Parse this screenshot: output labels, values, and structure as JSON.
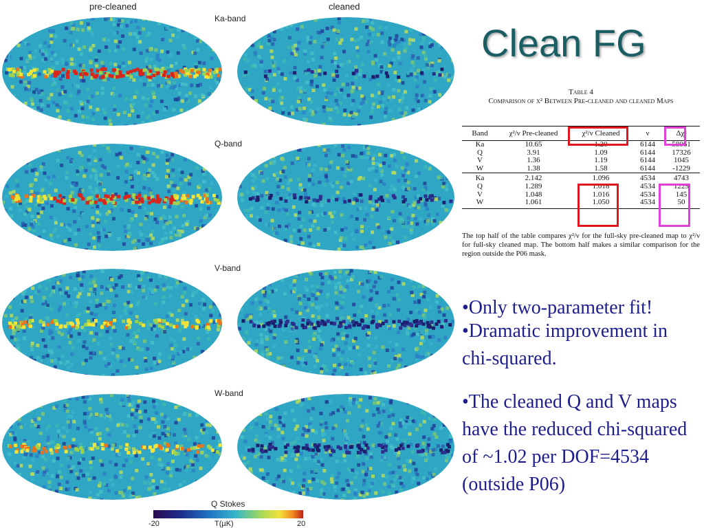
{
  "figure": {
    "columns": {
      "left": "pre-cleaned",
      "right": "cleaned"
    },
    "bands": [
      "Ka-band",
      "Q-band",
      "V-band",
      "W-band"
    ],
    "colorbar": {
      "title": "Q Stokes",
      "min": "-20",
      "unit": "T(µK)",
      "max": "20"
    }
  },
  "slide": {
    "title": "Clean FG"
  },
  "table": {
    "number": "Table 4",
    "caption": "Comparison of χ² Between Pre-cleaned and cleaned Maps",
    "headers": [
      "Band",
      "χ²/ν Pre-cleaned",
      "χ²/ν Cleaned",
      "ν",
      "Δχ²"
    ],
    "rows": [
      [
        "Ka",
        "10.65",
        "1.20",
        "6144",
        "58061"
      ],
      [
        "Q",
        "3.91",
        "1.09",
        "6144",
        "17326"
      ],
      [
        "V",
        "1.36",
        "1.19",
        "6144",
        "1045"
      ],
      [
        "W",
        "1.38",
        "1.58",
        "6144",
        "-1229"
      ],
      [
        "Ka",
        "2.142",
        "1.096",
        "4534",
        "4743"
      ],
      [
        "Q",
        "1.289",
        "1.018",
        "4534",
        "1229"
      ],
      [
        "V",
        "1.048",
        "1.016",
        "4534",
        "145"
      ],
      [
        "W",
        "1.061",
        "1.050",
        "4534",
        "50"
      ]
    ],
    "note": "The top half of the table compares χ²/ν for the full-sky pre-cleaned map to χ²/ν for full-sky cleaned map.  The bottom half makes a similar comparison for the region outside the P06 mask.",
    "highlight_colors": {
      "red": "#e0161e",
      "magenta": "#e040d8"
    }
  },
  "bullets": [
    "•Only two-parameter fit!",
    "•Dramatic improvement in chi-squared.",
    "•The cleaned Q and V maps have the reduced chi-squared of ~1.02 per DOF=4534 (outside P06)"
  ]
}
